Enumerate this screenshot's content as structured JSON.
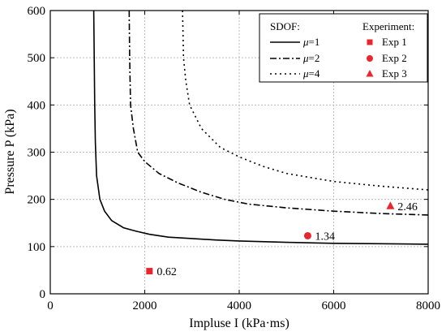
{
  "chart_data": {
    "type": "line",
    "title": "",
    "xlabel": "Impluse I (kPa·ms)",
    "ylabel": "Pressure P (kPa)",
    "xlim": [
      0,
      8000
    ],
    "ylim": [
      0,
      600
    ],
    "x_ticks": [
      "0",
      "2000",
      "4000",
      "6000",
      "8000"
    ],
    "y_ticks": [
      "0",
      "100",
      "200",
      "300",
      "400",
      "500",
      "600"
    ],
    "grid": "dotted vertical and horizontal",
    "legend": {
      "placement": "top-right",
      "sdof_title": "SDOF:",
      "experiment_title": "Experiment:",
      "series_labels": [
        {
          "sym": "μ",
          "rest": "=1"
        },
        {
          "sym": "μ",
          "rest": "=2"
        },
        {
          "sym": "μ",
          "rest": "=4"
        }
      ],
      "experiment_labels": [
        "Exp 1",
        "Exp 2",
        "Exp 3"
      ]
    },
    "series": [
      {
        "name": "μ=1",
        "style": "solid",
        "points": [
          [
            920,
            600
          ],
          [
            930,
            500
          ],
          [
            940,
            400
          ],
          [
            955,
            320
          ],
          [
            980,
            250
          ],
          [
            1050,
            200
          ],
          [
            1150,
            175
          ],
          [
            1300,
            155
          ],
          [
            1550,
            140
          ],
          [
            1800,
            133
          ],
          [
            2100,
            126
          ],
          [
            2500,
            120
          ],
          [
            3000,
            117
          ],
          [
            3500,
            114
          ],
          [
            4000,
            112
          ],
          [
            5000,
            109
          ],
          [
            6000,
            107
          ],
          [
            7000,
            106
          ],
          [
            8000,
            105
          ]
        ]
      },
      {
        "name": "μ=2",
        "style": "dash-dot",
        "points": [
          [
            1670,
            600
          ],
          [
            1680,
            500
          ],
          [
            1700,
            400
          ],
          [
            1760,
            350
          ],
          [
            1850,
            300
          ],
          [
            2000,
            280
          ],
          [
            2300,
            255
          ],
          [
            2700,
            235
          ],
          [
            3200,
            215
          ],
          [
            3700,
            200
          ],
          [
            4200,
            190
          ],
          [
            5000,
            182
          ],
          [
            6000,
            175
          ],
          [
            7000,
            170
          ],
          [
            8000,
            167
          ]
        ]
      },
      {
        "name": "μ=4",
        "style": "dotted",
        "points": [
          [
            2800,
            600
          ],
          [
            2820,
            500
          ],
          [
            2870,
            450
          ],
          [
            2950,
            400
          ],
          [
            3200,
            350
          ],
          [
            3600,
            310
          ],
          [
            4000,
            290
          ],
          [
            4500,
            270
          ],
          [
            5000,
            255
          ],
          [
            6000,
            238
          ],
          [
            7000,
            228
          ],
          [
            8000,
            220
          ]
        ]
      }
    ],
    "experiments": [
      {
        "name": "Exp 1",
        "marker": "square",
        "x": 2100,
        "y": 48,
        "label": "0.62"
      },
      {
        "name": "Exp 2",
        "marker": "circle",
        "x": 5450,
        "y": 123,
        "label": "1.34"
      },
      {
        "name": "Exp 3",
        "marker": "triangle",
        "x": 7200,
        "y": 186,
        "label": "2.46"
      }
    ],
    "colors": {
      "curves": "#000000",
      "experiments": "#e8262d"
    }
  }
}
